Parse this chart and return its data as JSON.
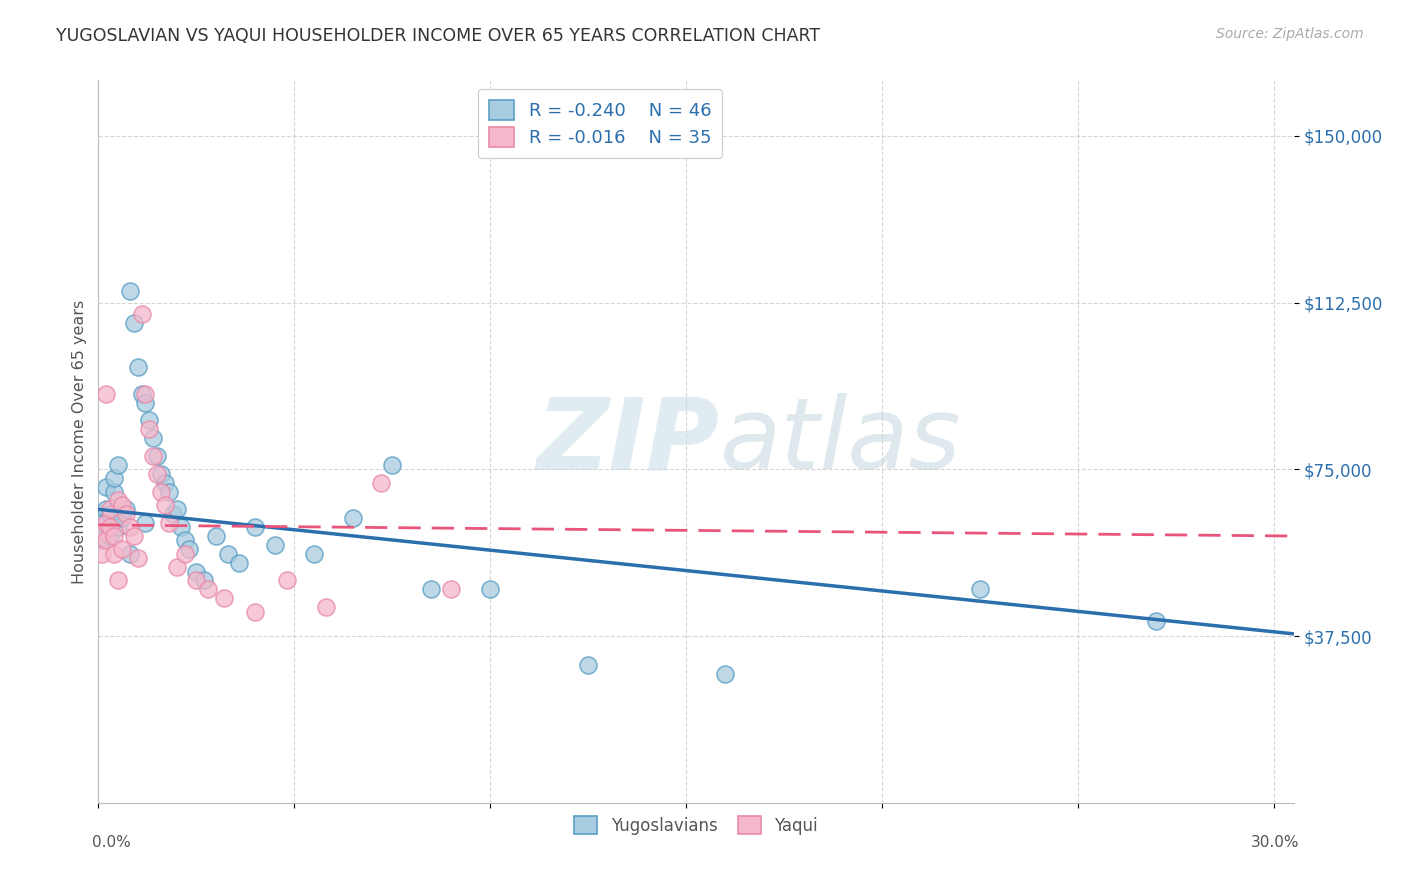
{
  "title": "YUGOSLAVIAN VS YAQUI HOUSEHOLDER INCOME OVER 65 YEARS CORRELATION CHART",
  "source": "Source: ZipAtlas.com",
  "ylabel": "Householder Income Over 65 years",
  "watermark": "ZIPatlas",
  "ytick_labels": [
    "$37,500",
    "$75,000",
    "$112,500",
    "$150,000"
  ],
  "ytick_values": [
    37500,
    75000,
    112500,
    150000
  ],
  "ymin": 0,
  "ymax": 162500,
  "xmin": 0.0,
  "xmax": 0.305,
  "legend_blue_r": "-0.240",
  "legend_blue_n": "46",
  "legend_pink_r": "-0.016",
  "legend_pink_n": "35",
  "blue_fill": "#a8cce0",
  "pink_fill": "#f5b8cb",
  "blue_edge": "#5a9fc4",
  "pink_edge": "#e88aaa",
  "blue_line": "#2b6fad",
  "pink_line": "#e8547a",
  "background_color": "#ffffff",
  "grid_color": "#cccccc",
  "blue_x": [
    0.001,
    0.001,
    0.002,
    0.002,
    0.003,
    0.003,
    0.004,
    0.004,
    0.005,
    0.006,
    0.007,
    0.008,
    0.009,
    0.01,
    0.011,
    0.012,
    0.013,
    0.014,
    0.015,
    0.016,
    0.017,
    0.018,
    0.019,
    0.021,
    0.022,
    0.023,
    0.025,
    0.027,
    0.03,
    0.033,
    0.036,
    0.04,
    0.045,
    0.055,
    0.065,
    0.075,
    0.085,
    0.1,
    0.125,
    0.16,
    0.225,
    0.27,
    0.005,
    0.008,
    0.012,
    0.02
  ],
  "blue_y": [
    63000,
    59000,
    66000,
    71000,
    65000,
    60000,
    70000,
    73000,
    62000,
    64000,
    66000,
    115000,
    108000,
    98000,
    92000,
    90000,
    86000,
    82000,
    78000,
    74000,
    72000,
    70000,
    65000,
    62000,
    59000,
    57000,
    52000,
    50000,
    60000,
    56000,
    54000,
    62000,
    58000,
    56000,
    64000,
    76000,
    48000,
    48000,
    31000,
    29000,
    48000,
    41000,
    76000,
    56000,
    63000,
    66000
  ],
  "pink_x": [
    0.001,
    0.001,
    0.002,
    0.002,
    0.003,
    0.003,
    0.004,
    0.004,
    0.005,
    0.005,
    0.006,
    0.006,
    0.007,
    0.008,
    0.009,
    0.01,
    0.011,
    0.012,
    0.013,
    0.014,
    0.015,
    0.016,
    0.017,
    0.018,
    0.02,
    0.022,
    0.025,
    0.028,
    0.032,
    0.04,
    0.048,
    0.058,
    0.072,
    0.09,
    0.002
  ],
  "pink_y": [
    56000,
    61000,
    63000,
    59000,
    66000,
    62000,
    56000,
    60000,
    50000,
    68000,
    67000,
    57000,
    65000,
    62000,
    60000,
    55000,
    110000,
    92000,
    84000,
    78000,
    74000,
    70000,
    67000,
    63000,
    53000,
    56000,
    50000,
    48000,
    46000,
    43000,
    50000,
    44000,
    72000,
    48000,
    92000
  ],
  "blue_trend_x": [
    0.0,
    0.305
  ],
  "blue_trend_y": [
    66000,
    38000
  ],
  "pink_trend_x": [
    0.0,
    0.305
  ],
  "pink_trend_y": [
    62500,
    60000
  ]
}
